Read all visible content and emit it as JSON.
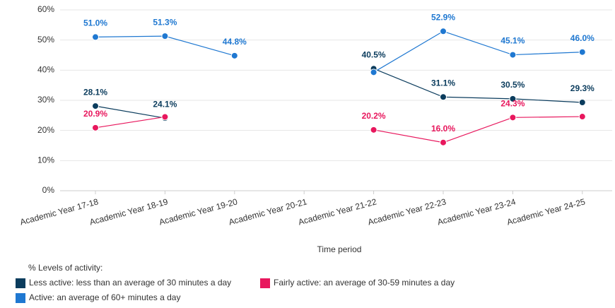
{
  "chart_data": {
    "type": "line",
    "categories": [
      "Academic Year 17-18",
      "Academic Year 18-19",
      "Academic Year 19-20",
      "Academic Year 20-21",
      "Academic Year 21-22",
      "Academic Year 22-23",
      "Academic Year 23-24",
      "Academic Year 24-25"
    ],
    "series": [
      {
        "name": "Less active: less than an average of 30 minutes a day",
        "color": "#0b3c5d",
        "values": [
          28.1,
          24.1,
          null,
          null,
          40.5,
          31.1,
          30.5,
          29.3
        ],
        "value_labels": [
          "28.1%",
          "24.1%",
          null,
          null,
          "40.5%",
          "31.1%",
          "30.5%",
          "29.3%"
        ]
      },
      {
        "name": "Fairly active: an average of 30-59 minutes a day",
        "color": "#e8175d",
        "values": [
          20.9,
          24.5,
          null,
          null,
          20.2,
          16.0,
          24.3,
          24.6
        ],
        "value_labels": [
          "20.9%",
          null,
          null,
          null,
          "20.2%",
          "16.0%",
          "24.3%",
          null
        ]
      },
      {
        "name": "Active: an average of 60+ minutes a day",
        "color": "#1f78d1",
        "values": [
          51.0,
          51.3,
          44.8,
          null,
          39.3,
          52.9,
          45.1,
          46.0
        ],
        "value_labels": [
          "51.0%",
          "51.3%",
          "44.8%",
          null,
          null,
          "52.9%",
          "45.1%",
          "46.0%"
        ]
      }
    ],
    "x_label": "Time period",
    "legend_title": "% Levels of activity:",
    "ylim": [
      0,
      60
    ],
    "yticks": [
      {
        "value": 0,
        "label": "0%"
      },
      {
        "value": 10,
        "label": "10%"
      },
      {
        "value": 20,
        "label": "20%"
      },
      {
        "value": 30,
        "label": "30%"
      },
      {
        "value": 40,
        "label": "40%"
      },
      {
        "value": 50,
        "label": "50%"
      },
      {
        "value": 60,
        "label": "60%"
      }
    ],
    "grid": true
  }
}
